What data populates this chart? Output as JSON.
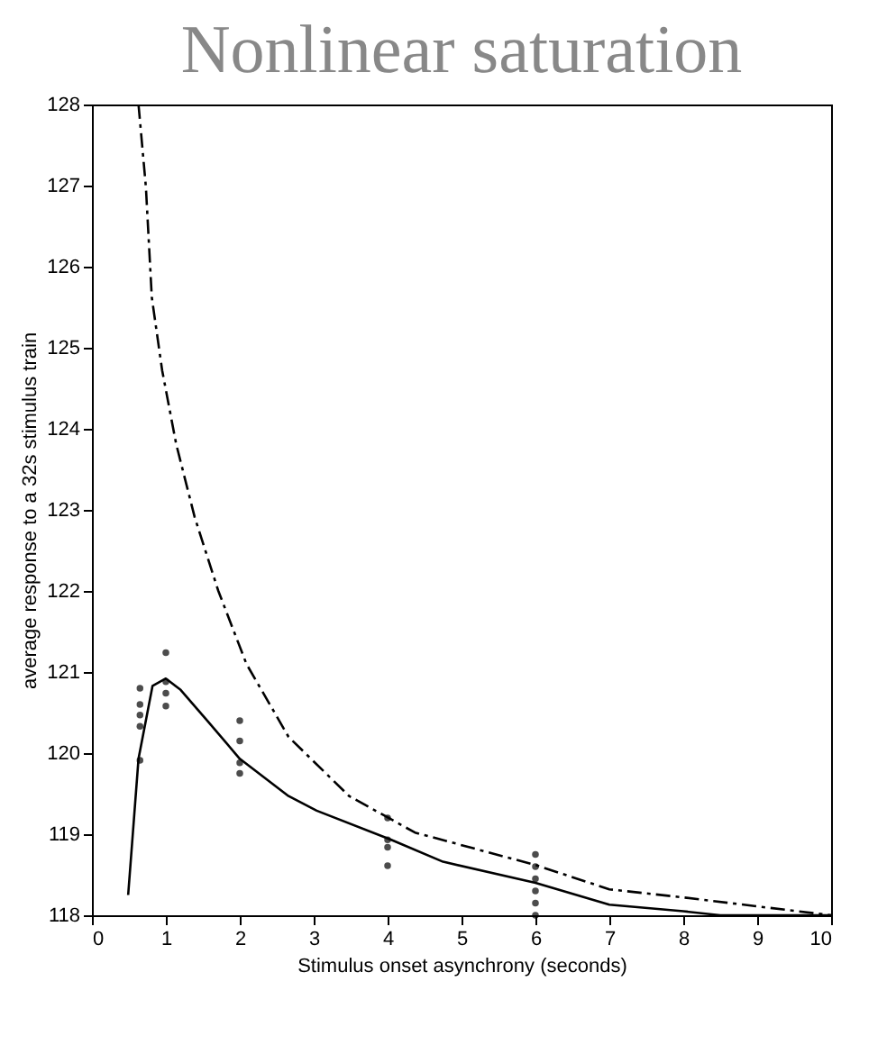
{
  "chart_data": {
    "type": "line",
    "title": "Nonlinear saturation",
    "xlabel": "Stimulus onset asynchrony (seconds)",
    "ylabel": "average response to a 32s stimulus train",
    "xlim": [
      0,
      10
    ],
    "ylim": [
      118,
      128
    ],
    "xticks": [
      0,
      1,
      2,
      3,
      4,
      5,
      6,
      7,
      8,
      9,
      10
    ],
    "yticks": [
      118,
      119,
      120,
      121,
      122,
      123,
      124,
      125,
      126,
      127,
      128
    ],
    "grid": false,
    "series": [
      {
        "type": "scatter",
        "marker": "circle",
        "color": "#000000",
        "x": [
          0.65,
          0.65,
          0.65,
          0.65,
          0.65,
          1,
          1,
          1,
          1,
          2,
          2,
          2,
          2,
          4,
          4,
          4,
          4,
          6,
          6,
          6,
          6,
          6,
          6
        ],
        "values": [
          120.8,
          120.6,
          120.47,
          120.33,
          119.91,
          121.24,
          120.88,
          120.74,
          120.58,
          120.4,
          120.15,
          119.88,
          119.75,
          119.2,
          118.93,
          118.84,
          118.61,
          118.75,
          118.6,
          118.45,
          118.3,
          118.15,
          118.0
        ]
      },
      {
        "line_style": "solid",
        "color": "#000000",
        "x": [
          0.49,
          0.63,
          0.82,
          1.0,
          1.2,
          1.58,
          2.0,
          2.66,
          3.04,
          4.05,
          4.75,
          6,
          7,
          8,
          8.5,
          10
        ],
        "values": [
          118.25,
          119.93,
          120.83,
          120.92,
          120.78,
          120.38,
          119.93,
          119.47,
          119.29,
          118.93,
          118.66,
          118.4,
          118.13,
          118.05,
          118.0,
          118.0
        ]
      },
      {
        "line_style": "dashed",
        "color": "#000000",
        "x": [
          0.63,
          0.73,
          0.81,
          0.95,
          1.14,
          1.39,
          1.71,
          2.09,
          2.66,
          3.48,
          4.37,
          6,
          7,
          8,
          9,
          10
        ],
        "values": [
          128,
          126.98,
          125.62,
          124.72,
          123.81,
          122.91,
          122.0,
          121.1,
          120.2,
          119.47,
          119.02,
          118.62,
          118.32,
          118.22,
          118.11,
          118.0
        ]
      }
    ]
  }
}
